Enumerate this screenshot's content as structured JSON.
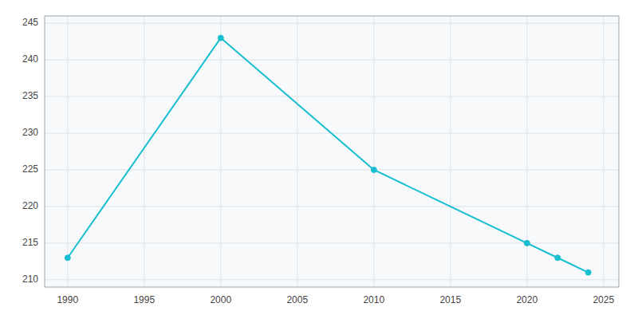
{
  "chart_data": {
    "type": "line",
    "x": [
      1990,
      2000,
      2010,
      2020,
      2022,
      2024
    ],
    "values": [
      213,
      243,
      225,
      215,
      213,
      211
    ],
    "color": "#17becf",
    "marker": "circle",
    "xlim": [
      1988.5,
      2026
    ],
    "ylim": [
      209,
      246
    ],
    "xticks": [
      1990,
      1995,
      2000,
      2005,
      2010,
      2015,
      2020,
      2025
    ],
    "yticks": [
      210,
      215,
      220,
      225,
      230,
      235,
      240,
      245
    ],
    "grid": true
  }
}
